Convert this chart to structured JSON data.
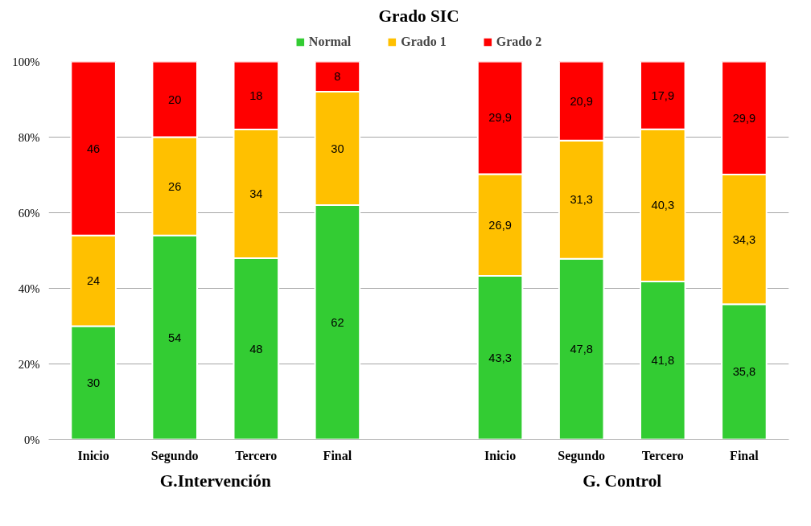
{
  "chart_data": {
    "type": "bar",
    "title": "Grado SIC",
    "stacked": true,
    "data_labels": true,
    "legend": "top",
    "grid": "y",
    "categories": [
      "Inicio",
      "Segundo",
      "Tercero",
      "Final",
      null,
      "Inicio",
      "Segundo",
      "Tercero",
      "Final"
    ],
    "series": [
      {
        "name": "Normal",
        "color": "#33cc33",
        "values": [
          30,
          54,
          48,
          62,
          null,
          43.3,
          47.8,
          41.8,
          35.8
        ],
        "value_labels": [
          "30",
          "54",
          "48",
          "62",
          null,
          "43,3",
          "47,8",
          "41,8",
          "35,8"
        ]
      },
      {
        "name": "Grado 1",
        "color": "#ffc000",
        "values": [
          24,
          26,
          34,
          30,
          null,
          26.9,
          31.3,
          40.3,
          34.3
        ],
        "value_labels": [
          "24",
          "26",
          "34",
          "30",
          null,
          "26,9",
          "31,3",
          "40,3",
          "34,3"
        ]
      },
      {
        "name": "Grado 2",
        "color": "#ff0000",
        "values": [
          46,
          20,
          18,
          8,
          null,
          29.9,
          20.9,
          17.9,
          29.9
        ],
        "value_labels": [
          "46",
          "20",
          "18",
          "8",
          null,
          "29,9",
          "20,9",
          "17,9",
          "29,9"
        ]
      }
    ],
    "ylim": [
      0,
      100
    ],
    "yticks": [
      {
        "value": 0,
        "label": "0%"
      },
      {
        "value": 20,
        "label": "20%"
      },
      {
        "value": 40,
        "label": "40%"
      },
      {
        "value": 60,
        "label": "60%"
      },
      {
        "value": 80,
        "label": "80%"
      },
      {
        "value": 100,
        "label": "100%"
      }
    ],
    "annotations": [
      "G.Intervención",
      "G. Control"
    ]
  }
}
